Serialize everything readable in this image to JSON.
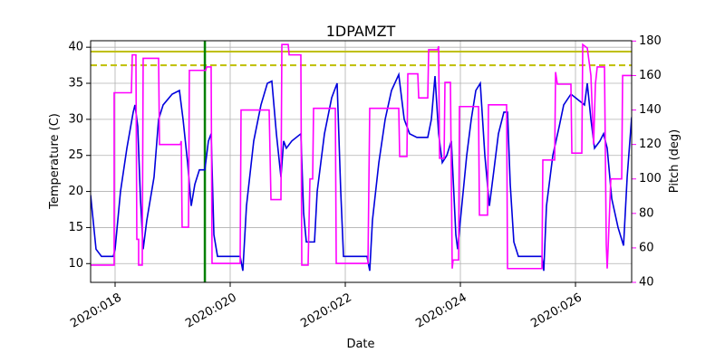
{
  "chart_data": {
    "type": "line",
    "title": "1DPAMZT",
    "xlabel": "Date",
    "ylabel": "Temperature (C)",
    "y2label": "Pitch (deg)",
    "xlim": [
      17.575,
      26.976
    ],
    "xticks": [
      {
        "value": 18,
        "label": "2020:018"
      },
      {
        "value": 20,
        "label": "2020:020"
      },
      {
        "value": 22,
        "label": "2020:022"
      },
      {
        "value": 24,
        "label": "2020:024"
      },
      {
        "value": 26,
        "label": "2020:026"
      }
    ],
    "ylim": [
      7.4,
      40.9
    ],
    "yticks": [
      10,
      15,
      20,
      25,
      30,
      35,
      40
    ],
    "y2lim": [
      40,
      180.2
    ],
    "y2ticks": [
      40,
      60,
      80,
      100,
      120,
      140,
      160,
      180
    ],
    "grid": true,
    "hlines": [
      {
        "value": 39.4,
        "color": "#bfbf00",
        "dashed": false
      },
      {
        "value": 37.5,
        "color": "#bfbf00",
        "dashed": true
      }
    ],
    "vlines": [
      {
        "value": 19.56,
        "color": "#008000"
      }
    ],
    "series": [
      {
        "name": "Temperature",
        "color": "#0000dd",
        "axis": "y",
        "x": [
          17.575,
          17.669,
          17.764,
          17.969,
          18.0,
          18.094,
          18.205,
          18.315,
          18.346,
          18.394,
          18.441,
          18.488,
          18.551,
          18.677,
          18.756,
          18.835,
          18.992,
          19.118,
          19.181,
          19.26,
          19.323,
          19.386,
          19.465,
          19.559,
          19.622,
          19.669,
          19.717,
          19.78,
          19.937,
          20.173,
          20.22,
          20.283,
          20.409,
          20.535,
          20.646,
          20.724,
          20.803,
          20.882,
          20.929,
          20.976,
          21.071,
          21.228,
          21.276,
          21.323,
          21.402,
          21.465,
          21.512,
          21.638,
          21.764,
          21.858,
          21.921,
          21.969,
          22.142,
          22.378,
          22.425,
          22.472,
          22.583,
          22.693,
          22.803,
          22.929,
          23.024,
          23.118,
          23.244,
          23.433,
          23.496,
          23.559,
          23.622,
          23.685,
          23.764,
          23.843,
          23.921,
          23.953,
          24.0,
          24.11,
          24.189,
          24.268,
          24.346,
          24.425,
          24.504,
          24.583,
          24.661,
          24.756,
          24.819,
          24.866,
          24.929,
          25.008,
          25.213,
          25.417,
          25.449,
          25.496,
          25.606,
          25.717,
          25.795,
          25.921,
          26.079,
          26.157,
          26.205,
          26.268,
          26.331,
          26.425,
          26.488,
          26.551,
          26.63,
          26.74,
          26.835,
          26.898,
          26.976
        ],
        "values": [
          19.5,
          12,
          11,
          11,
          12,
          20,
          26,
          31,
          32,
          29,
          19,
          12,
          16,
          22,
          30,
          32,
          33.5,
          34,
          30,
          24,
          18,
          21,
          23,
          23,
          27,
          28,
          14,
          11,
          11,
          11,
          9,
          18,
          27,
          32,
          35,
          35.3,
          28,
          22,
          27,
          26,
          27,
          28,
          17,
          13,
          13,
          13,
          20,
          28,
          33,
          35,
          20,
          11,
          11,
          11,
          9,
          16,
          24,
          30,
          34,
          36.2,
          30,
          28,
          27.5,
          27.5,
          30,
          36,
          28,
          24,
          25,
          27,
          14,
          12,
          16,
          25,
          30,
          34,
          35,
          25,
          18,
          23,
          28,
          31,
          31,
          21,
          13,
          11,
          11,
          11,
          9,
          18,
          25,
          29,
          32,
          33.5,
          32.5,
          32,
          35,
          30,
          26,
          27,
          28,
          26,
          19,
          15,
          12.5,
          22,
          30.3
        ]
      },
      {
        "name": "Pitch",
        "color": "#ff00ff",
        "axis": "y2",
        "x": [
          17.575,
          17.984,
          17.984,
          18.283,
          18.299,
          18.362,
          18.378,
          18.409,
          18.409,
          18.472,
          18.488,
          18.756,
          18.772,
          19.134,
          19.15,
          19.165,
          19.276,
          19.291,
          19.575,
          19.591,
          19.669,
          19.685,
          20.173,
          20.189,
          20.677,
          20.709,
          20.882,
          20.898,
          21.008,
          21.024,
          21.228,
          21.244,
          21.354,
          21.386,
          21.433,
          21.449,
          21.827,
          21.843,
          22.394,
          22.425,
          22.929,
          22.945,
          23.071,
          23.087,
          23.26,
          23.276,
          23.433,
          23.449,
          23.606,
          23.622,
          23.638,
          23.717,
          23.732,
          23.827,
          23.858,
          23.874,
          23.969,
          23.984,
          24.315,
          24.331,
          24.472,
          24.488,
          24.803,
          24.819,
          25.417,
          25.433,
          25.638,
          25.654,
          25.685,
          25.921,
          25.937,
          26.11,
          26.126,
          26.205,
          26.268,
          26.315,
          26.346,
          26.378,
          26.504,
          26.535,
          26.551,
          26.567,
          26.614,
          26.803,
          26.819,
          26.976
        ],
        "values": [
          50,
          50,
          150,
          150,
          172,
          172,
          65,
          65,
          50,
          50,
          170,
          170,
          120,
          120,
          122,
          72,
          72,
          163,
          163,
          165,
          165,
          51,
          51,
          140,
          140,
          88,
          88,
          178,
          178,
          172,
          172,
          50,
          50,
          100,
          100,
          141,
          141,
          51,
          51,
          141,
          141,
          113,
          113,
          161,
          161,
          147,
          147,
          175,
          175,
          177,
          112,
          112,
          156,
          156,
          48,
          53,
          53,
          142,
          142,
          79,
          79,
          143,
          143,
          48,
          48,
          111,
          111,
          162,
          155,
          155,
          115,
          115,
          178,
          176,
          160,
          120,
          155,
          165,
          165,
          62,
          48,
          60,
          100,
          100,
          160,
          160
        ]
      }
    ]
  }
}
